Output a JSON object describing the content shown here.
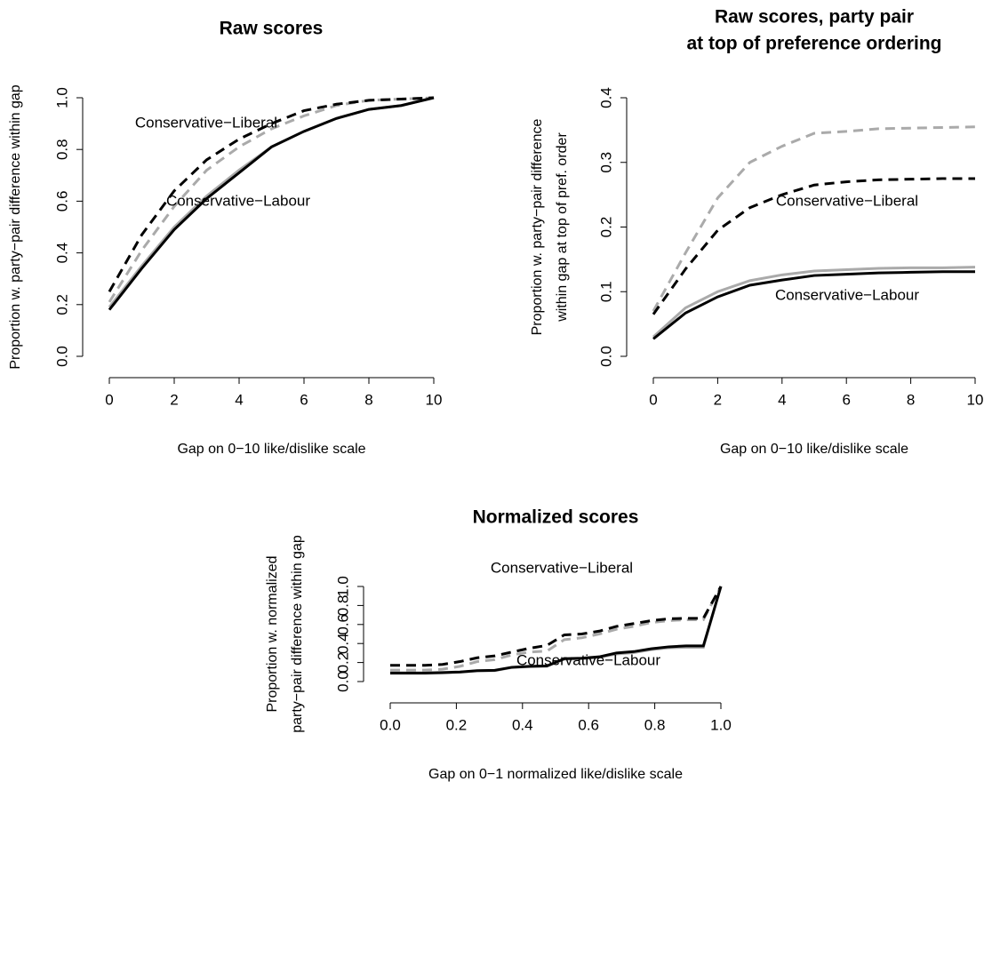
{
  "chart_data": [
    {
      "type": "line",
      "title": [
        "Raw scores"
      ],
      "xlabel": [
        "Gap on 0−10 like/dislike scale"
      ],
      "ylabel": [
        "Proportion w. party−pair difference within gap"
      ],
      "x": [
        0,
        1,
        2,
        3,
        4,
        5,
        6,
        7,
        8,
        9,
        10
      ],
      "xlim": [
        0,
        10
      ],
      "ylim": [
        0,
        1
      ],
      "xticks": [
        0,
        2,
        4,
        6,
        8,
        10
      ],
      "yticks": [
        {
          "value": 0,
          "label": "0.0"
        },
        0.2,
        0.4,
        0.6,
        0.8,
        {
          "value": 1,
          "label": "1.0"
        }
      ],
      "series": [
        {
          "color": "#aaaaaa",
          "dashed": true,
          "values": [
            0.21,
            0.41,
            0.58,
            0.72,
            0.81,
            0.88,
            0.93,
            0.97,
            0.99,
            0.995,
            1.0
          ]
        },
        {
          "color": "#aaaaaa",
          "dashed": false,
          "values": [
            0.19,
            0.35,
            0.5,
            0.62,
            0.72,
            0.81,
            0.87,
            0.92,
            0.955,
            0.97,
            1.0
          ]
        },
        {
          "color": "#000000",
          "dashed": true,
          "values": [
            0.25,
            0.47,
            0.64,
            0.76,
            0.84,
            0.9,
            0.95,
            0.975,
            0.99,
            0.995,
            1.0
          ]
        },
        {
          "color": "#000000",
          "dashed": false,
          "values": [
            0.18,
            0.34,
            0.49,
            0.61,
            0.71,
            0.81,
            0.87,
            0.92,
            0.955,
            0.97,
            1.0
          ]
        }
      ],
      "annotations": [
        "Conservative−Liberal",
        "Conservative−Labour"
      ]
    },
    {
      "type": "line",
      "title": [
        "Raw scores, party pair",
        "at top of preference ordering"
      ],
      "xlabel": [
        "Gap on 0−10 like/dislike scale"
      ],
      "ylabel": [
        "Proportion w. party−pair difference",
        "within gap at top of pref. order"
      ],
      "x": [
        0,
        1,
        2,
        3,
        4,
        5,
        6,
        7,
        8,
        9,
        10
      ],
      "xlim": [
        0,
        10
      ],
      "ylim": [
        0,
        0.4
      ],
      "xticks": [
        0,
        2,
        4,
        6,
        8,
        10
      ],
      "yticks": [
        {
          "value": 0,
          "label": "0.0"
        },
        0.1,
        0.2,
        0.3,
        0.4
      ],
      "series": [
        {
          "color": "#aaaaaa",
          "dashed": true,
          "values": [
            0.07,
            0.16,
            0.245,
            0.3,
            0.325,
            0.345,
            0.348,
            0.352,
            0.353,
            0.354,
            0.355
          ]
        },
        {
          "color": "#aaaaaa",
          "dashed": false,
          "values": [
            0.03,
            0.075,
            0.1,
            0.117,
            0.126,
            0.132,
            0.134,
            0.136,
            0.137,
            0.137,
            0.138
          ]
        },
        {
          "color": "#000000",
          "dashed": true,
          "values": [
            0.065,
            0.135,
            0.195,
            0.23,
            0.25,
            0.265,
            0.27,
            0.273,
            0.274,
            0.275,
            0.275
          ]
        },
        {
          "color": "#000000",
          "dashed": false,
          "values": [
            0.027,
            0.067,
            0.092,
            0.11,
            0.118,
            0.125,
            0.127,
            0.129,
            0.13,
            0.131,
            0.131
          ]
        }
      ],
      "annotations": [
        "Conservative−Liberal",
        "Conservative−Labour"
      ]
    },
    {
      "type": "line",
      "title": [
        "Normalized scores"
      ],
      "xlabel": [
        "Gap on 0−1 normalized like/dislike scale"
      ],
      "ylabel": [
        "Proportion w. normalized",
        "party−pair difference within gap"
      ],
      "x": [
        0,
        0.053,
        0.105,
        0.158,
        0.211,
        0.263,
        0.316,
        0.368,
        0.421,
        0.474,
        0.526,
        0.579,
        0.632,
        0.684,
        0.737,
        0.789,
        0.842,
        0.895,
        0.947,
        1.0
      ],
      "xlim": [
        0,
        1
      ],
      "ylim": [
        0,
        1
      ],
      "xticks": [
        {
          "value": 0,
          "label": "0.0"
        },
        0.2,
        0.4,
        0.6,
        0.8,
        {
          "value": 1,
          "label": "1.0"
        }
      ],
      "yticks": [
        {
          "value": 0,
          "label": "0.0"
        },
        0.2,
        0.4,
        0.6,
        0.8,
        {
          "value": 1,
          "label": "1.0"
        }
      ],
      "series": [
        {
          "color": "#aaaaaa",
          "dashed": true,
          "values": [
            0.12,
            0.12,
            0.12,
            0.13,
            0.16,
            0.21,
            0.23,
            0.28,
            0.31,
            0.32,
            0.44,
            0.46,
            0.5,
            0.55,
            0.58,
            0.62,
            0.64,
            0.65,
            0.65,
            1.0
          ]
        },
        {
          "color": "#aaaaaa",
          "dashed": false,
          "values": [
            0.085,
            0.085,
            0.085,
            0.09,
            0.098,
            0.112,
            0.115,
            0.148,
            0.157,
            0.16,
            0.235,
            0.24,
            0.255,
            0.29,
            0.305,
            0.335,
            0.355,
            0.36,
            0.36,
            1.0
          ]
        },
        {
          "color": "#000000",
          "dashed": true,
          "values": [
            0.17,
            0.17,
            0.17,
            0.18,
            0.21,
            0.25,
            0.27,
            0.31,
            0.35,
            0.38,
            0.49,
            0.5,
            0.53,
            0.58,
            0.61,
            0.64,
            0.66,
            0.665,
            0.665,
            1.0
          ]
        },
        {
          "color": "#000000",
          "dashed": false,
          "values": [
            0.09,
            0.09,
            0.09,
            0.095,
            0.1,
            0.115,
            0.118,
            0.15,
            0.16,
            0.165,
            0.24,
            0.245,
            0.26,
            0.3,
            0.315,
            0.345,
            0.365,
            0.375,
            0.375,
            1.0
          ]
        }
      ],
      "annotations": [
        "Conservative−Liberal",
        "Conservative−Labour"
      ]
    }
  ]
}
